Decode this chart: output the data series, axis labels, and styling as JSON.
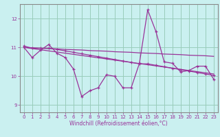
{
  "bg_color": "#caf0f0",
  "line_color": "#993399",
  "grid_color": "#99ccbb",
  "xlabel": "Windchill (Refroidissement éolien,°C)",
  "ylim": [
    8.75,
    12.5
  ],
  "xlim": [
    -0.5,
    23.5
  ],
  "yticks": [
    9,
    10,
    11,
    12
  ],
  "xticks": [
    0,
    1,
    2,
    3,
    4,
    5,
    6,
    7,
    8,
    9,
    10,
    11,
    12,
    13,
    14,
    15,
    16,
    17,
    18,
    19,
    20,
    21,
    22,
    23
  ],
  "series1": [
    11.0,
    10.65,
    10.9,
    11.1,
    10.8,
    10.65,
    10.25,
    9.3,
    9.5,
    9.6,
    10.05,
    10.0,
    9.6,
    9.6,
    10.45,
    12.3,
    11.55,
    10.5,
    10.45,
    10.15,
    10.2,
    10.35,
    10.35,
    9.9
  ],
  "series2": [
    11.05,
    10.97,
    10.97,
    10.97,
    10.93,
    10.88,
    10.83,
    10.78,
    10.73,
    10.68,
    10.63,
    10.58,
    10.53,
    10.48,
    10.43,
    10.43,
    10.38,
    10.33,
    10.28,
    10.23,
    10.18,
    10.13,
    10.08,
    10.03
  ],
  "series3": [
    11.0,
    10.99,
    10.97,
    10.96,
    10.95,
    10.93,
    10.92,
    10.91,
    10.89,
    10.88,
    10.87,
    10.85,
    10.84,
    10.83,
    10.81,
    10.8,
    10.79,
    10.77,
    10.76,
    10.75,
    10.73,
    10.72,
    10.71,
    10.69
  ],
  "series4": [
    11.0,
    10.96,
    10.92,
    10.88,
    10.84,
    10.8,
    10.76,
    10.72,
    10.68,
    10.64,
    10.6,
    10.56,
    10.52,
    10.48,
    10.44,
    10.4,
    10.36,
    10.32,
    10.28,
    10.24,
    10.2,
    10.16,
    10.12,
    10.08
  ]
}
